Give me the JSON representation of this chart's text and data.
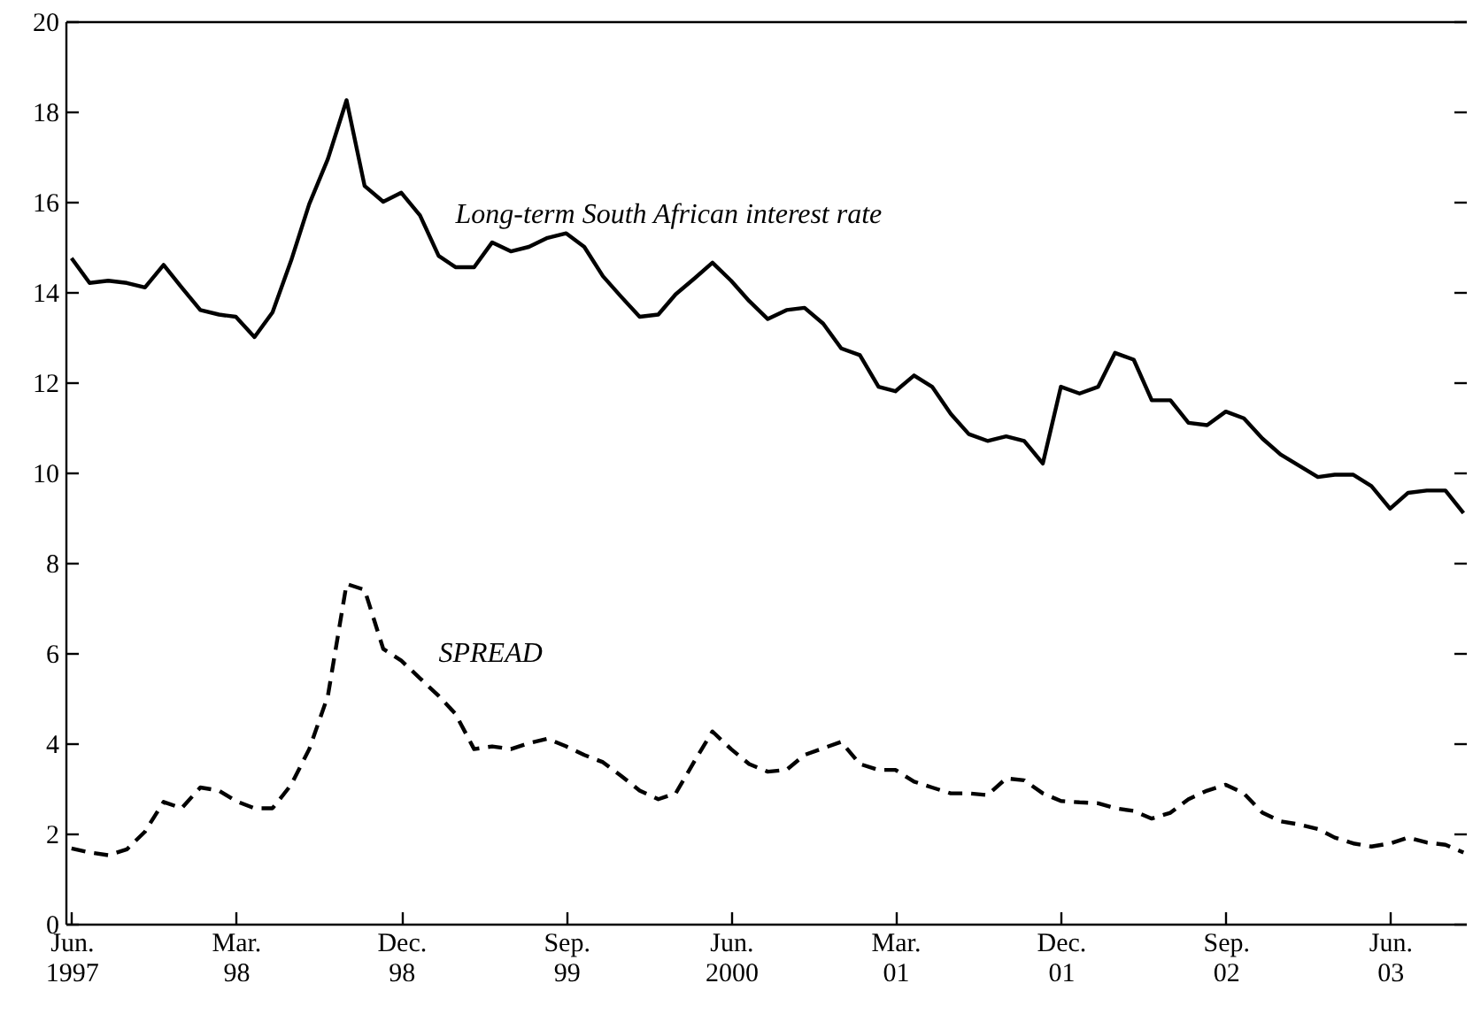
{
  "chart_data": {
    "type": "line",
    "x": [
      "1997-06",
      "1997-07",
      "1997-08",
      "1997-09",
      "1997-10",
      "1997-11",
      "1997-12",
      "1998-01",
      "1998-02",
      "1998-03",
      "1998-04",
      "1998-05",
      "1998-06",
      "1998-07",
      "1998-08",
      "1998-09",
      "1998-10",
      "1998-11",
      "1998-12",
      "1999-01",
      "1999-02",
      "1999-03",
      "1999-04",
      "1999-05",
      "1999-06",
      "1999-07",
      "1999-08",
      "1999-09",
      "1999-10",
      "1999-11",
      "1999-12",
      "2000-01",
      "2000-02",
      "2000-03",
      "2000-04",
      "2000-05",
      "2000-06",
      "2000-07",
      "2000-08",
      "2000-09",
      "2000-10",
      "2000-11",
      "2000-12",
      "2001-01",
      "2001-02",
      "2001-03",
      "2001-04",
      "2001-05",
      "2001-06",
      "2001-07",
      "2001-08",
      "2001-09",
      "2001-10",
      "2001-11",
      "2001-12",
      "2002-01",
      "2002-02",
      "2002-03",
      "2002-04",
      "2002-05",
      "2002-06",
      "2002-07",
      "2002-08",
      "2002-09",
      "2002-10",
      "2002-11",
      "2002-12",
      "2003-01",
      "2003-02",
      "2003-03",
      "2003-04",
      "2003-05",
      "2003-06",
      "2003-07",
      "2003-08",
      "2003-09",
      "2003-10"
    ],
    "series": [
      {
        "name": "Long-term South African interest rate",
        "color": "#000000",
        "line_style": "solid",
        "values": [
          14.75,
          14.2,
          14.25,
          14.2,
          14.1,
          14.6,
          14.1,
          13.6,
          13.5,
          13.45,
          13.0,
          13.55,
          14.7,
          15.95,
          16.95,
          18.25,
          16.35,
          16.0,
          16.2,
          15.7,
          14.8,
          14.55,
          14.55,
          15.1,
          14.9,
          15.0,
          15.2,
          15.3,
          15.0,
          14.35,
          13.9,
          13.45,
          13.5,
          13.95,
          14.3,
          14.65,
          14.25,
          13.8,
          13.4,
          13.6,
          13.65,
          13.3,
          12.75,
          12.6,
          11.9,
          11.8,
          12.15,
          11.9,
          11.3,
          10.85,
          10.7,
          10.8,
          10.7,
          10.2,
          11.9,
          11.75,
          11.9,
          12.65,
          12.5,
          11.6,
          11.6,
          11.1,
          11.05,
          11.35,
          11.2,
          10.75,
          10.4,
          10.15,
          9.9,
          9.95,
          9.95,
          9.7,
          9.2,
          9.55,
          9.6,
          9.6,
          9.1
        ]
      },
      {
        "name": "SPREAD",
        "color": "#000000",
        "line_style": "dashed",
        "values": [
          1.67,
          1.58,
          1.52,
          1.65,
          2.04,
          2.7,
          2.56,
          3.02,
          2.95,
          2.72,
          2.56,
          2.56,
          3.08,
          3.87,
          5.05,
          7.53,
          7.4,
          6.09,
          5.83,
          5.44,
          5.05,
          4.65,
          3.87,
          3.93,
          3.87,
          4.0,
          4.1,
          3.93,
          3.74,
          3.58,
          3.28,
          2.95,
          2.76,
          2.89,
          3.6,
          4.26,
          3.87,
          3.54,
          3.37,
          3.41,
          3.74,
          3.89,
          4.03,
          3.54,
          3.41,
          3.41,
          3.15,
          3.02,
          2.89,
          2.89,
          2.85,
          3.22,
          3.18,
          2.89,
          2.72,
          2.69,
          2.67,
          2.56,
          2.5,
          2.33,
          2.46,
          2.76,
          2.95,
          3.08,
          2.89,
          2.46,
          2.27,
          2.2,
          2.1,
          1.91,
          1.78,
          1.71,
          1.78,
          1.91,
          1.8,
          1.75,
          1.58
        ]
      }
    ],
    "xlim": [
      "1997-05-22",
      "2003-10-05"
    ],
    "xticks": [
      {
        "value": "1997-06",
        "label": "Jun.\n1997"
      },
      {
        "value": "1998-03",
        "label": "Mar.\n98"
      },
      {
        "value": "1998-12",
        "label": "Dec.\n98"
      },
      {
        "value": "1999-09",
        "label": "Sep.\n99"
      },
      {
        "value": "2000-06",
        "label": "Jun.\n2000"
      },
      {
        "value": "2001-03",
        "label": "Mar.\n01"
      },
      {
        "value": "2001-12",
        "label": "Dec.\n01"
      },
      {
        "value": "2002-09",
        "label": "Sep.\n02"
      },
      {
        "value": "2003-06",
        "label": "Jun.\n03"
      }
    ],
    "ylim": [
      0,
      20
    ],
    "yticks": [
      0,
      2,
      4,
      6,
      8,
      10,
      12,
      14,
      16,
      18,
      20
    ]
  }
}
